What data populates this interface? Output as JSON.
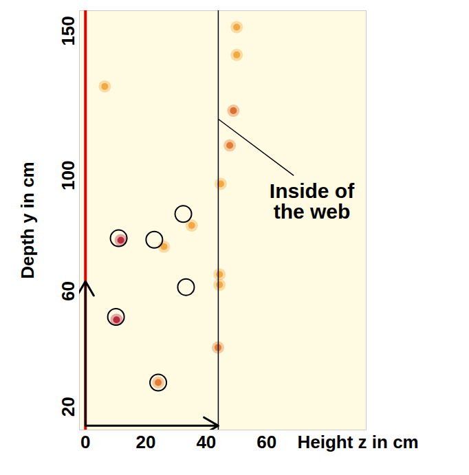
{
  "chart_data": {
    "type": "scatter",
    "x_label": "Height z in cm",
    "y_label": "Depth y in cm",
    "xlim": [
      -2,
      93
    ],
    "ylim": [
      12,
      157
    ],
    "xticks": [
      0,
      20,
      40,
      60
    ],
    "yticks": [
      20,
      60,
      100,
      150
    ],
    "grid": false,
    "reflections": {
      "x": [
        50.1,
        50.1,
        49.0,
        47.8,
        44.8,
        44.4,
        43.9,
        11.7,
        10.3,
        24.1,
        26.0,
        6.4,
        35.2,
        44.4
      ],
      "y": [
        151.3,
        141.7,
        122.4,
        110.4,
        97.1,
        65.8,
        40.5,
        77.6,
        50.1,
        28.4,
        75.4,
        130.8,
        82.7,
        62.2
      ],
      "colors": [
        "#f0a030",
        "#f0a030",
        "#d8601c",
        "#e07020",
        "#f0a030",
        "#f0a030",
        "#e07020",
        "#b0142a",
        "#b0142a",
        "#e07020",
        "#f0a030",
        "#f0a030",
        "#f0a030",
        "#f0a030"
      ]
    },
    "circles": {
      "x": [
        11.0,
        22.8,
        32.4,
        33.3,
        10.1,
        24.1
      ],
      "y": [
        78.3,
        77.8,
        86.7,
        61.4,
        51.1,
        28.4
      ],
      "marker": "circle",
      "color": "#000000"
    },
    "vlines": [
      {
        "x": 0,
        "color": "#e00000"
      },
      {
        "x": 44,
        "color": "#000000"
      }
    ],
    "arrows": [
      {
        "x1": 0,
        "y1": 13.5,
        "x2": 0,
        "y2": 63.4,
        "color": "#000000"
      },
      {
        "x1": 0,
        "y1": 13.5,
        "x2": 44,
        "y2": 13.5,
        "color": "#000000"
      }
    ],
    "annotation": {
      "text": "Inside of the web",
      "x": 75,
      "y": 91,
      "x1": 44,
      "y1": 119.5,
      "x2": 69,
      "y2": 100
    }
  }
}
